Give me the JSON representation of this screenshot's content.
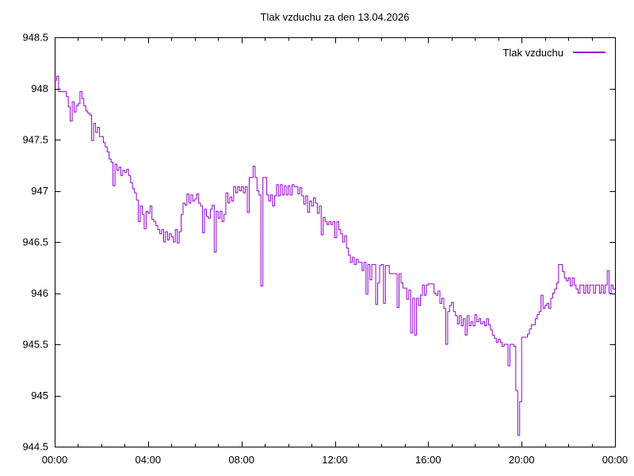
{
  "page": {
    "background": "#ffffff"
  },
  "chart_data": {
    "type": "line",
    "title": "Tlak vzduchu za den 13.04.2026",
    "grid": false,
    "legend": {
      "position": "top-right",
      "entries": [
        {
          "label": "Tlak vzduchu",
          "color": "#9400d3"
        }
      ]
    },
    "x_axis": {
      "range_hours": [
        0,
        24
      ],
      "major_tick_hours": [
        0,
        4,
        8,
        12,
        16,
        20,
        24
      ],
      "major_tick_labels": [
        "00:00",
        "04:00",
        "08:00",
        "12:00",
        "16:00",
        "20:00",
        "00:00"
      ],
      "minor_tick_interval_hours": 1
    },
    "y_axis": {
      "range": [
        944.5,
        948.5
      ],
      "tick_values": [
        944.5,
        945,
        945.5,
        946,
        946.5,
        947,
        947.5,
        948,
        948.5
      ],
      "tick_labels": [
        "944.5",
        "945",
        "945.5",
        "946",
        "946.5",
        "947",
        "947.5",
        "948",
        "948.5"
      ]
    },
    "series": [
      {
        "name": "Tlak vzduchu",
        "unit": "hPa",
        "color": "#9400d3",
        "start_time": "00:00",
        "sample_interval_minutes": 5,
        "values": [
          948.08,
          948.12,
          947.97,
          947.97,
          947.97,
          947.97,
          947.92,
          947.82,
          947.68,
          947.87,
          947.77,
          947.83,
          947.85,
          947.97,
          947.9,
          947.83,
          947.78,
          947.76,
          947.74,
          947.49,
          947.66,
          947.57,
          947.62,
          947.53,
          947.53,
          947.47,
          947.43,
          947.38,
          947.31,
          947.28,
          947.05,
          947.26,
          947.2,
          947.23,
          947.15,
          947.2,
          947.18,
          947.21,
          947.15,
          947.08,
          947.02,
          946.98,
          946.91,
          946.7,
          946.85,
          946.77,
          946.63,
          946.8,
          946.78,
          946.85,
          946.72,
          946.7,
          946.66,
          946.62,
          946.58,
          946.62,
          946.5,
          946.6,
          946.52,
          946.58,
          946.55,
          946.5,
          946.62,
          946.49,
          946.6,
          946.77,
          946.88,
          946.86,
          946.97,
          946.88,
          946.96,
          946.9,
          946.92,
          946.97,
          946.88,
          946.85,
          946.59,
          946.82,
          946.75,
          946.73,
          946.82,
          946.86,
          946.4,
          946.8,
          946.73,
          946.8,
          946.7,
          946.77,
          946.98,
          946.88,
          946.94,
          946.9,
          947.04,
          946.98,
          947.04,
          947.0,
          947.04,
          946.98,
          947.04,
          946.79,
          947.13,
          947.13,
          947.24,
          947.13,
          947.0,
          946.96,
          946.07,
          947.13,
          947.13,
          946.96,
          946.9,
          946.96,
          946.85,
          946.95,
          947.06,
          946.95,
          947.06,
          946.96,
          947.05,
          946.96,
          947.05,
          946.96,
          947.06,
          947.04,
          947.04,
          946.97,
          947.03,
          946.95,
          946.87,
          946.95,
          946.79,
          946.9,
          946.85,
          946.93,
          946.88,
          946.78,
          946.85,
          946.57,
          946.74,
          946.7,
          946.67,
          946.7,
          946.67,
          946.7,
          946.54,
          946.7,
          946.62,
          946.58,
          946.5,
          946.56,
          946.44,
          946.37,
          946.3,
          946.35,
          946.28,
          946.33,
          946.3,
          946.3,
          946.22,
          946.3,
          945.99,
          946.28,
          946.13,
          946.28,
          946.28,
          945.89,
          946.1,
          946.27,
          946.28,
          945.9,
          946.27,
          946.27,
          946.19,
          946.19,
          946.19,
          946.19,
          945.86,
          946.19,
          946.1,
          946.05,
          946.05,
          945.94,
          946.03,
          945.61,
          945.95,
          945.59,
          945.95,
          945.88,
          945.98,
          946.08,
          945.98,
          946.08,
          946.09,
          946.09,
          946.09,
          946.0,
          945.98,
          946.02,
          945.9,
          945.95,
          945.85,
          945.5,
          945.82,
          945.88,
          945.91,
          945.82,
          945.78,
          945.7,
          945.78,
          945.68,
          945.75,
          945.59,
          945.78,
          945.68,
          945.72,
          945.68,
          945.79,
          945.72,
          945.75,
          945.7,
          945.72,
          945.68,
          945.75,
          945.69,
          945.64,
          945.59,
          945.56,
          945.52,
          945.55,
          945.52,
          945.48,
          945.5,
          945.5,
          945.29,
          945.5,
          945.5,
          945.48,
          945.05,
          944.61,
          944.94,
          945.57,
          945.57,
          945.57,
          945.6,
          945.65,
          945.69,
          945.69,
          945.75,
          945.79,
          945.82,
          945.98,
          945.85,
          945.88,
          945.9,
          945.85,
          945.95,
          946.0,
          946.04,
          946.1,
          946.28,
          946.28,
          946.21,
          946.15,
          946.12,
          946.15,
          946.07,
          946.15,
          946.08,
          946.04,
          946.0,
          946.08,
          946.08,
          946.0,
          946.08,
          946.0,
          946.08,
          946.08,
          946.0,
          946.08,
          946.08,
          946.0,
          946.08,
          946.0,
          946.08,
          946.22,
          946.0,
          946.08,
          946.04
        ]
      }
    ]
  }
}
